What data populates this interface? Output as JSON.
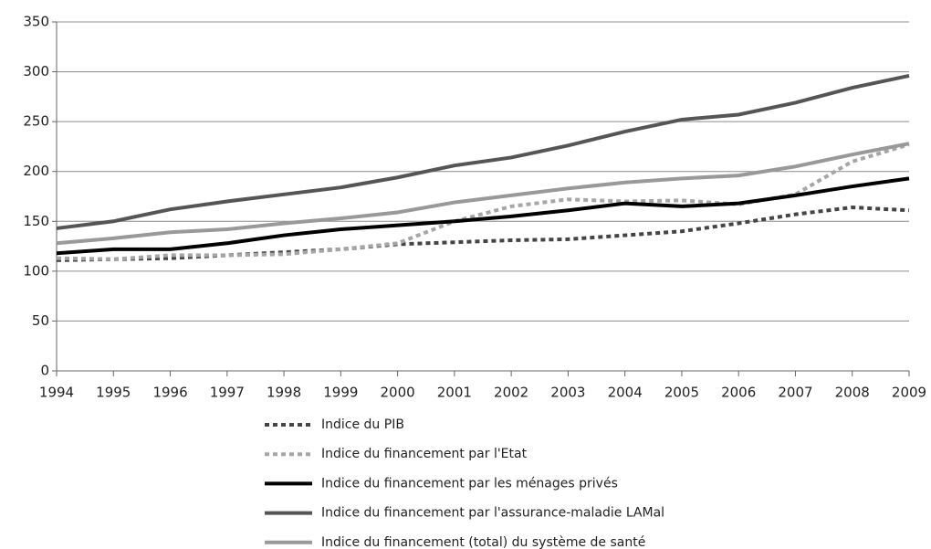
{
  "chart_data": {
    "type": "line",
    "x": [
      1994,
      1995,
      1996,
      1997,
      1998,
      1999,
      2000,
      2001,
      2002,
      2003,
      2004,
      2005,
      2006,
      2007,
      2008,
      2009
    ],
    "xlim": [
      1994,
      2009
    ],
    "xticks": [
      1994,
      1995,
      1996,
      1997,
      1998,
      1999,
      2000,
      2001,
      2002,
      2003,
      2004,
      2005,
      2006,
      2007,
      2008,
      2009
    ],
    "ylim": [
      0,
      350
    ],
    "yticks": [
      0,
      50,
      100,
      150,
      200,
      250,
      300,
      350
    ],
    "grid": true,
    "legend": "bottom",
    "series": [
      {
        "name": "Indice du PIB",
        "color": "#444444",
        "dash": "dotted",
        "values": [
          111,
          112,
          113,
          116,
          119,
          122,
          127,
          129,
          131,
          132,
          136,
          140,
          148,
          157,
          164,
          161
        ]
      },
      {
        "name": "Indice du financement par l'Etat",
        "color": "#a6a6a6",
        "dash": "dotted",
        "values": [
          113,
          112,
          116,
          116,
          117,
          122,
          128,
          150,
          165,
          172,
          170,
          171,
          167,
          177,
          210,
          227
        ]
      },
      {
        "name": "Indice du financement par les ménages privés",
        "color": "#000000",
        "dash": "solid",
        "values": [
          118,
          122,
          122,
          128,
          136,
          142,
          146,
          150,
          155,
          161,
          168,
          165,
          168,
          176,
          185,
          193
        ]
      },
      {
        "name": "Indice du financement par l'assurance-maladie LAMal",
        "color": "#555555",
        "dash": "solid",
        "values": [
          143,
          150,
          162,
          170,
          177,
          184,
          194,
          206,
          214,
          226,
          240,
          252,
          257,
          269,
          284,
          296
        ]
      },
      {
        "name": "Indice du financement (total) du système de santé",
        "color": "#999999",
        "dash": "solid",
        "values": [
          128,
          133,
          139,
          142,
          148,
          153,
          159,
          169,
          176,
          183,
          189,
          193,
          196,
          205,
          217,
          228
        ]
      }
    ]
  }
}
